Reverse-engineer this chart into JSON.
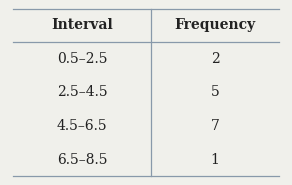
{
  "headers": [
    "Interval",
    "Frequency"
  ],
  "rows": [
    [
      "0.5–2.5",
      "2"
    ],
    [
      "2.5–4.5",
      "5"
    ],
    [
      "4.5–6.5",
      "7"
    ],
    [
      "6.5–8.5",
      "1"
    ]
  ],
  "background_color": "#f0f0eb",
  "header_font_size": 10,
  "cell_font_size": 10,
  "col_split": 0.52,
  "line_color": "#8899aa",
  "text_color": "#222222"
}
